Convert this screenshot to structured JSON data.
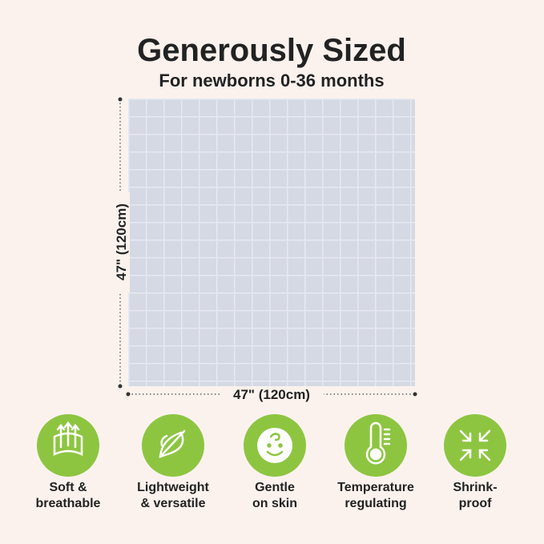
{
  "header": {
    "title": "Generously Sized",
    "subtitle": "For newborns 0-36 months"
  },
  "dimensions": {
    "height": "47\" (120cm)",
    "width": "47\" (120cm)"
  },
  "features": [
    {
      "lines": [
        "Soft &",
        "breathable"
      ]
    },
    {
      "lines": [
        "Lightweight",
        "& versatile"
      ]
    },
    {
      "lines": [
        "Gentle",
        "on skin"
      ]
    },
    {
      "lines": [
        "Temperature",
        "regulating"
      ]
    },
    {
      "lines": [
        "Shrink-",
        "proof"
      ]
    }
  ]
}
